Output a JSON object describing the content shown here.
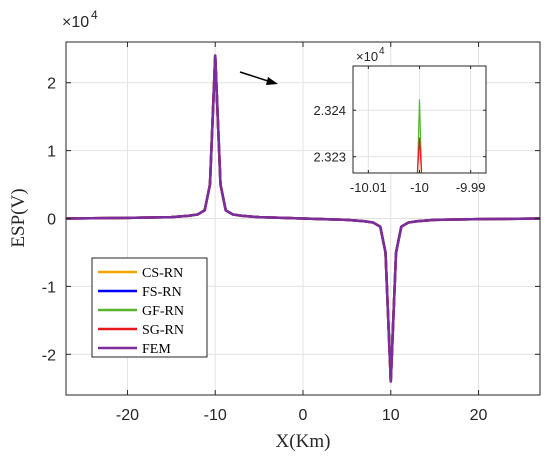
{
  "chart_data": [
    {
      "type": "line",
      "title": "",
      "xlabel": "X(Km)",
      "ylabel": "ESP(V)",
      "y_exponent": {
        "base": "×10",
        "power": "4"
      },
      "xlim": [
        -27,
        27
      ],
      "ylim": [
        -2.6,
        2.6
      ],
      "xticks": [
        -20,
        -10,
        0,
        10,
        20
      ],
      "xtick_labels": [
        "-20",
        "-10",
        "0",
        "10",
        "20"
      ],
      "yticks": [
        -2,
        -1,
        0,
        1,
        2
      ],
      "ytick_labels": [
        "-2",
        "-1",
        "0",
        "1",
        "2"
      ],
      "grid": true,
      "legend_position": "lower-left",
      "series": [
        {
          "name": "CS-RN",
          "color": "#f5a300",
          "x": [
            -27,
            -20,
            -15,
            -13,
            -12,
            -11.2,
            -10.6,
            -10,
            -9.4,
            -8.8,
            -8,
            -7,
            -5,
            0,
            5,
            7,
            8,
            8.8,
            9.4,
            10,
            10.6,
            11.2,
            12,
            13,
            15,
            20,
            27
          ],
          "y": [
            0,
            0.01,
            0.02,
            0.04,
            0.06,
            0.12,
            0.5,
            2.4,
            0.5,
            0.12,
            0.06,
            0.04,
            0.02,
            0,
            -0.02,
            -0.04,
            -0.06,
            -0.12,
            -0.5,
            -2.4,
            -0.5,
            -0.12,
            -0.06,
            -0.04,
            -0.02,
            -0.01,
            0
          ]
        },
        {
          "name": "FS-RN",
          "color": "#0000ff",
          "x": [
            -27,
            -20,
            -15,
            -13,
            -12,
            -11.2,
            -10.6,
            -10,
            -9.4,
            -8.8,
            -8,
            -7,
            -5,
            0,
            5,
            7,
            8,
            8.8,
            9.4,
            10,
            10.6,
            11.2,
            12,
            13,
            15,
            20,
            27
          ],
          "y": [
            0,
            0.01,
            0.02,
            0.04,
            0.06,
            0.12,
            0.5,
            2.4,
            0.5,
            0.12,
            0.06,
            0.04,
            0.02,
            0,
            -0.02,
            -0.04,
            -0.06,
            -0.12,
            -0.5,
            -2.4,
            -0.5,
            -0.12,
            -0.06,
            -0.04,
            -0.02,
            -0.01,
            0
          ]
        },
        {
          "name": "GF-RN",
          "color": "#5ab42c",
          "x": [
            -27,
            -20,
            -15,
            -13,
            -12,
            -11.2,
            -10.6,
            -10,
            -9.4,
            -8.8,
            -8,
            -7,
            -5,
            0,
            5,
            7,
            8,
            8.8,
            9.4,
            10,
            10.6,
            11.2,
            12,
            13,
            15,
            20,
            27
          ],
          "y": [
            0,
            0.01,
            0.02,
            0.04,
            0.06,
            0.12,
            0.5,
            2.4,
            0.5,
            0.12,
            0.06,
            0.04,
            0.02,
            0,
            -0.02,
            -0.04,
            -0.06,
            -0.12,
            -0.5,
            -2.4,
            -0.5,
            -0.12,
            -0.06,
            -0.04,
            -0.02,
            -0.01,
            0
          ]
        },
        {
          "name": "SG-RN",
          "color": "#e8151b",
          "x": [
            -27,
            -20,
            -15,
            -13,
            -12,
            -11.2,
            -10.6,
            -10,
            -9.4,
            -8.8,
            -8,
            -7,
            -5,
            0,
            5,
            7,
            8,
            8.8,
            9.4,
            10,
            10.6,
            11.2,
            12,
            13,
            15,
            20,
            27
          ],
          "y": [
            0,
            0.01,
            0.02,
            0.04,
            0.06,
            0.12,
            0.5,
            2.4,
            0.5,
            0.12,
            0.06,
            0.04,
            0.02,
            0,
            -0.02,
            -0.04,
            -0.06,
            -0.12,
            -0.5,
            -2.4,
            -0.5,
            -0.12,
            -0.06,
            -0.04,
            -0.02,
            -0.01,
            0
          ]
        },
        {
          "name": "FEM",
          "color": "#7b2d9e",
          "x": [
            -27,
            -20,
            -15,
            -13,
            -12,
            -11.2,
            -10.6,
            -10,
            -9.4,
            -8.8,
            -8,
            -7,
            -5,
            0,
            5,
            7,
            8,
            8.8,
            9.4,
            10,
            10.6,
            11.2,
            12,
            13,
            15,
            20,
            27
          ],
          "y": [
            0,
            0.01,
            0.02,
            0.04,
            0.06,
            0.12,
            0.5,
            2.4,
            0.5,
            0.12,
            0.06,
            0.04,
            0.02,
            0,
            -0.02,
            -0.04,
            -0.06,
            -0.12,
            -0.5,
            -2.4,
            -0.5,
            -0.12,
            -0.06,
            -0.04,
            -0.02,
            -0.01,
            0
          ]
        }
      ]
    },
    {
      "type": "line",
      "title": "",
      "xlabel": "",
      "ylabel": "",
      "y_exponent": {
        "base": "×10",
        "power": "4"
      },
      "xlim": [
        -10.013,
        -9.987
      ],
      "ylim": [
        2.32265,
        2.32495
      ],
      "xticks": [
        -10.01,
        -10,
        -9.99
      ],
      "xtick_labels": [
        "-10.01",
        "-10",
        "-9.99"
      ],
      "yticks": [
        2.323,
        2.324
      ],
      "ytick_labels": [
        "2.323",
        "2.324"
      ],
      "grid": true,
      "series": [
        {
          "name": "GF-RN",
          "color": "#5ab42c",
          "x": [
            -10.0004,
            -10.0,
            -9.9996
          ],
          "y": [
            2.32265,
            2.32422,
            2.32265
          ]
        },
        {
          "name": "SG-RN",
          "color": "#e8151b",
          "x": [
            -10.0004,
            -10.0,
            -9.9996
          ],
          "y": [
            2.32265,
            2.3234,
            2.32265
          ]
        }
      ]
    }
  ]
}
